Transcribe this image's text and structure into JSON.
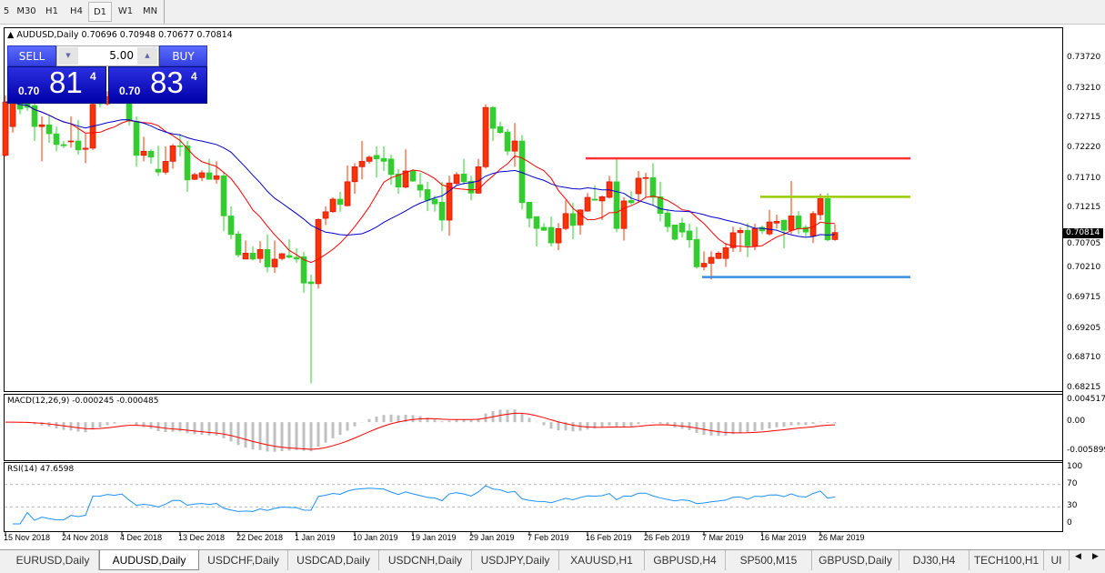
{
  "toolbar": {
    "timeframes": [
      "5",
      "M30",
      "H1",
      "H4",
      "D1",
      "W1",
      "MN"
    ],
    "active": "D1"
  },
  "chart_header": {
    "symbol": "AUDUSD,Daily",
    "ohlc": "0.70696 0.70948 0.70677 0.70814"
  },
  "trade_panel": {
    "sell_label": "SELL",
    "buy_label": "BUY",
    "lot": "5.00",
    "bid": {
      "prefix": "0.70",
      "big": "81",
      "sup": "4"
    },
    "ask": {
      "prefix": "0.70",
      "big": "83",
      "sup": "4"
    }
  },
  "price_axis": [
    "0.73720",
    "0.73210",
    "0.72715",
    "0.72220",
    "0.71710",
    "0.71215",
    "0.70705",
    "0.70210",
    "0.69715",
    "0.69205",
    "0.68710",
    "0.68215"
  ],
  "current_price": "0.70814",
  "colors": {
    "bull": "#ff3300",
    "bear": "#32cd32",
    "ma_fast": "#ff0000",
    "ma_slow": "#0000cd",
    "macd_hist": "#c0c0c0",
    "macd_signal": "#ff0000",
    "rsi": "#1e90ff",
    "resistance": "#ff3333",
    "mid_level": "#99cc00",
    "support": "#3a8ee0"
  },
  "chart_data": {
    "type": "candlestick",
    "ohlc": [
      [
        0.721,
        0.731,
        0.7208,
        0.7299
      ],
      [
        0.7258,
        0.731,
        0.7248,
        0.7298
      ],
      [
        0.7298,
        0.7305,
        0.7279,
        0.7287
      ],
      [
        0.7305,
        0.7317,
        0.7284,
        0.729
      ],
      [
        0.7293,
        0.7302,
        0.7234,
        0.7258
      ],
      [
        0.7258,
        0.7275,
        0.72,
        0.7261
      ],
      [
        0.7261,
        0.7276,
        0.7231,
        0.7246
      ],
      [
        0.7246,
        0.7258,
        0.7217,
        0.7228
      ],
      [
        0.7228,
        0.7234,
        0.7222,
        0.7226
      ],
      [
        0.7233,
        0.7275,
        0.7223,
        0.7234
      ],
      [
        0.7234,
        0.7269,
        0.7211,
        0.7219
      ],
      [
        0.722,
        0.7246,
        0.7197,
        0.7222
      ],
      [
        0.7222,
        0.7305,
        0.7219,
        0.7295
      ],
      [
        0.7302,
        0.7311,
        0.729,
        0.7296
      ],
      [
        0.7296,
        0.7317,
        0.7293,
        0.7308
      ],
      [
        0.7308,
        0.7314,
        0.7298,
        0.7302
      ],
      [
        0.7302,
        0.732,
        0.7299,
        0.7311
      ],
      [
        0.7311,
        0.7317,
        0.726,
        0.7267
      ],
      [
        0.7267,
        0.7275,
        0.7191,
        0.721
      ],
      [
        0.721,
        0.7241,
        0.72,
        0.7217
      ],
      [
        0.7217,
        0.722,
        0.7196,
        0.7207
      ],
      [
        0.7187,
        0.7226,
        0.7176,
        0.7182
      ],
      [
        0.7182,
        0.7225,
        0.7178,
        0.72
      ],
      [
        0.72,
        0.7229,
        0.7188,
        0.7226
      ],
      [
        0.7226,
        0.7246,
        0.7208,
        0.7225
      ],
      [
        0.7226,
        0.7234,
        0.7149,
        0.7169
      ],
      [
        0.717,
        0.7181,
        0.7169,
        0.7178
      ],
      [
        0.7173,
        0.7185,
        0.7167,
        0.7181
      ],
      [
        0.7181,
        0.7204,
        0.717,
        0.717
      ],
      [
        0.717,
        0.72,
        0.7163,
        0.7176
      ],
      [
        0.7176,
        0.7182,
        0.7084,
        0.7109
      ],
      [
        0.7109,
        0.7125,
        0.707,
        0.7078
      ],
      [
        0.7079,
        0.7084,
        0.704,
        0.7044
      ],
      [
        0.7037,
        0.7068,
        0.7037,
        0.7047
      ],
      [
        0.7047,
        0.7058,
        0.7035,
        0.7037
      ],
      [
        0.7038,
        0.7067,
        0.7031,
        0.7053
      ],
      [
        0.7053,
        0.7078,
        0.7015,
        0.7024
      ],
      [
        0.7024,
        0.7068,
        0.7014,
        0.7037
      ],
      [
        0.7038,
        0.7047,
        0.7035,
        0.7046
      ],
      [
        0.7043,
        0.707,
        0.7038,
        0.704
      ],
      [
        0.704,
        0.7055,
        0.7031,
        0.7037
      ],
      [
        0.7041,
        0.7049,
        0.6981,
        0.6997
      ],
      [
        0.6999,
        0.7011,
        0.683,
        0.6996
      ],
      [
        0.6996,
        0.7105,
        0.6988,
        0.7103
      ],
      [
        0.7105,
        0.7125,
        0.7094,
        0.7116
      ],
      [
        0.7116,
        0.714,
        0.7114,
        0.7137
      ],
      [
        0.7137,
        0.7149,
        0.7116,
        0.7128
      ],
      [
        0.7126,
        0.7193,
        0.7125,
        0.7166
      ],
      [
        0.7166,
        0.7197,
        0.7146,
        0.7191
      ],
      [
        0.7191,
        0.7234,
        0.717,
        0.72
      ],
      [
        0.72,
        0.721,
        0.7196,
        0.7207
      ],
      [
        0.721,
        0.7225,
        0.7173,
        0.7204
      ],
      [
        0.7205,
        0.7225,
        0.7184,
        0.72
      ],
      [
        0.7204,
        0.7211,
        0.7161,
        0.7178
      ],
      [
        0.7179,
        0.7187,
        0.7146,
        0.7157
      ],
      [
        0.7157,
        0.722,
        0.7155,
        0.7184
      ],
      [
        0.7184,
        0.7187,
        0.7166,
        0.7167
      ],
      [
        0.7161,
        0.7181,
        0.714,
        0.7152
      ],
      [
        0.7153,
        0.7166,
        0.7117,
        0.7135
      ],
      [
        0.7137,
        0.7143,
        0.7116,
        0.7129
      ],
      [
        0.7132,
        0.7166,
        0.7084,
        0.7102
      ],
      [
        0.7102,
        0.7176,
        0.7076,
        0.7164
      ],
      [
        0.7163,
        0.7182,
        0.7161,
        0.7178
      ],
      [
        0.7179,
        0.7204,
        0.7161,
        0.7166
      ],
      [
        0.7167,
        0.7176,
        0.7135,
        0.7147
      ],
      [
        0.7147,
        0.7204,
        0.7146,
        0.7191
      ],
      [
        0.7191,
        0.7295,
        0.7188,
        0.729
      ],
      [
        0.729,
        0.7292,
        0.7234,
        0.7255
      ],
      [
        0.7258,
        0.7266,
        0.7246,
        0.7248
      ],
      [
        0.7249,
        0.7254,
        0.721,
        0.7217
      ],
      [
        0.7217,
        0.7264,
        0.7191,
        0.7234
      ],
      [
        0.7234,
        0.7244,
        0.712,
        0.7131
      ],
      [
        0.7132,
        0.7132,
        0.709,
        0.7105
      ],
      [
        0.7108,
        0.7108,
        0.7058,
        0.7088
      ],
      [
        0.709,
        0.7097,
        0.7084,
        0.7085
      ],
      [
        0.709,
        0.7108,
        0.7058,
        0.7064
      ],
      [
        0.7064,
        0.7097,
        0.7052,
        0.7088
      ],
      [
        0.7088,
        0.7135,
        0.7085,
        0.7113
      ],
      [
        0.7113,
        0.7131,
        0.707,
        0.7093
      ],
      [
        0.7094,
        0.712,
        0.7078,
        0.7119
      ],
      [
        0.7117,
        0.7147,
        0.7116,
        0.714
      ],
      [
        0.7137,
        0.716,
        0.7135,
        0.7135
      ],
      [
        0.7134,
        0.7143,
        0.7102,
        0.7141
      ],
      [
        0.714,
        0.7176,
        0.7138,
        0.7166
      ],
      [
        0.7166,
        0.7204,
        0.7082,
        0.7088
      ],
      [
        0.7088,
        0.714,
        0.7068,
        0.7134
      ],
      [
        0.7135,
        0.715,
        0.7128,
        0.7131
      ],
      [
        0.7146,
        0.7184,
        0.7132,
        0.7172
      ],
      [
        0.7172,
        0.7181,
        0.714,
        0.7173
      ],
      [
        0.7173,
        0.7197,
        0.7128,
        0.714
      ],
      [
        0.7141,
        0.7166,
        0.71,
        0.7113
      ],
      [
        0.7114,
        0.712,
        0.7082,
        0.7091
      ],
      [
        0.7094,
        0.7094,
        0.7068,
        0.707
      ],
      [
        0.7097,
        0.7106,
        0.7073,
        0.7082
      ],
      [
        0.7084,
        0.7096,
        0.7056,
        0.7069
      ],
      [
        0.707,
        0.7091,
        0.7021,
        0.7024
      ],
      [
        0.7024,
        0.705,
        0.7018,
        0.703
      ],
      [
        0.703,
        0.705,
        0.7003,
        0.704
      ],
      [
        0.7038,
        0.705,
        0.7037,
        0.7047
      ],
      [
        0.7038,
        0.7064,
        0.7024,
        0.7056
      ],
      [
        0.7056,
        0.7091,
        0.7049,
        0.7081
      ],
      [
        0.7081,
        0.709,
        0.7049,
        0.7085
      ],
      [
        0.7085,
        0.7097,
        0.704,
        0.7059
      ],
      [
        0.7059,
        0.7096,
        0.7052,
        0.7088
      ],
      [
        0.709,
        0.7093,
        0.7079,
        0.7084
      ],
      [
        0.7079,
        0.7119,
        0.7076,
        0.7099
      ],
      [
        0.7097,
        0.7111,
        0.7088,
        0.71
      ],
      [
        0.7102,
        0.7103,
        0.7055,
        0.7085
      ],
      [
        0.7085,
        0.7167,
        0.7079,
        0.7109
      ],
      [
        0.7109,
        0.7117,
        0.7079,
        0.7088
      ],
      [
        0.709,
        0.7094,
        0.7075,
        0.7082
      ],
      [
        0.7076,
        0.7117,
        0.7064,
        0.7113
      ],
      [
        0.7111,
        0.7146,
        0.7102,
        0.7138
      ],
      [
        0.7138,
        0.7147,
        0.7067,
        0.7069
      ],
      [
        0.70696,
        0.70948,
        0.70677,
        0.70814
      ]
    ],
    "time_labels": [
      "15 Nov 2018",
      "24 Nov 2018",
      "4 Dec 2018",
      "13 Dec 2018",
      "22 Dec 2018",
      "1 Jan 2019",
      "10 Jan 2019",
      "19 Jan 2019",
      "29 Jan 2019",
      "7 Feb 2019",
      "16 Feb 2019",
      "26 Feb 2019",
      "7 Mar 2019",
      "16 Mar 2019",
      "26 Mar 2019"
    ],
    "ylim": [
      0.68215,
      0.7372
    ],
    "horizontal_lines": [
      {
        "price": 0.7205,
        "from_label": "16 Feb 2019",
        "color": "resistance"
      },
      {
        "price": 0.7141,
        "from_label": "16 Mar 2019",
        "color": "mid_level"
      },
      {
        "price": 0.7007,
        "from_label": "7 Mar 2019",
        "color": "support"
      }
    ],
    "indicators": {
      "macd": {
        "label": "MACD(12,26,9) -0.000245 -0.000485",
        "axis": [
          "0.004517",
          "0.00",
          "-0.005899"
        ],
        "ylim": [
          -0.005899,
          0.004517
        ]
      },
      "rsi": {
        "label": "RSI(14) 47.6598",
        "axis": [
          "100",
          "70",
          "30",
          "0"
        ],
        "levels": [
          70,
          30
        ]
      }
    }
  },
  "tabs": [
    "EURUSD,Daily",
    "AUDUSD,Daily",
    "USDCHF,Daily",
    "USDCAD,Daily",
    "USDCNH,Daily",
    "USDJPY,Daily",
    "XAUUSD,H1",
    "GBPUSD,H4",
    "SP500,M15",
    "GBPUSD,Daily",
    "DJ30,H4",
    "TECH100,H1",
    "UI"
  ],
  "active_tab": "AUDUSD,Daily"
}
